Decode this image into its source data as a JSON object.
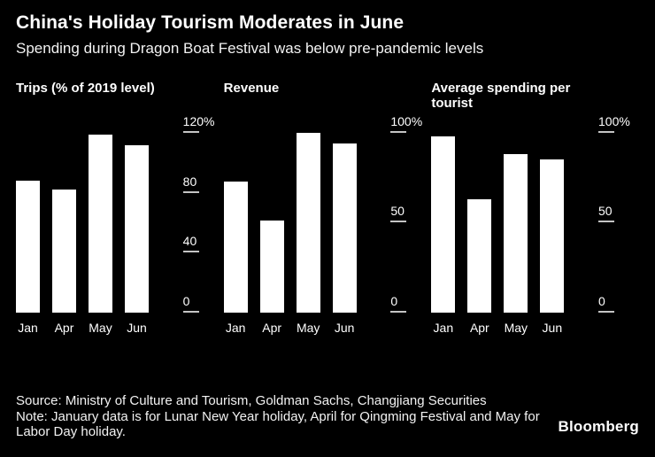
{
  "header": {
    "title": "China's Holiday Tourism Moderates in June",
    "subtitle": "Spending during Dragon Boat Festival was below pre-pandemic levels"
  },
  "chart_data": [
    {
      "type": "bar",
      "title": "Trips (% of 2019 level)",
      "categories": [
        "Jan",
        "Apr",
        "May",
        "Jun"
      ],
      "values": [
        88,
        82,
        119,
        112
      ],
      "ylim": [
        0,
        120
      ],
      "yticks": [
        {
          "value": 0,
          "label": "0"
        },
        {
          "value": 40,
          "label": "40"
        },
        {
          "value": 80,
          "label": "80"
        },
        {
          "value": 120,
          "label": "120%"
        }
      ],
      "legend": "none",
      "grid": false
    },
    {
      "type": "bar",
      "title": "Revenue",
      "categories": [
        "Jan",
        "Apr",
        "May",
        "Jun"
      ],
      "values": [
        73,
        51,
        100,
        94
      ],
      "ylim": [
        0,
        100
      ],
      "yticks": [
        {
          "value": 0,
          "label": "0"
        },
        {
          "value": 50,
          "label": "50"
        },
        {
          "value": 100,
          "label": "100%"
        }
      ],
      "legend": "none",
      "grid": false
    },
    {
      "type": "bar",
      "title": "Average spending per tourist",
      "categories": [
        "Jan",
        "Apr",
        "May",
        "Jun"
      ],
      "values": [
        98,
        63,
        88,
        85
      ],
      "ylim": [
        0,
        100
      ],
      "yticks": [
        {
          "value": 0,
          "label": "0"
        },
        {
          "value": 50,
          "label": "50"
        },
        {
          "value": 100,
          "label": "100%"
        }
      ],
      "legend": "none",
      "grid": false
    }
  ],
  "footer": {
    "source": "Source: Ministry of Culture and Tourism, Goldman Sachs, Changjiang Securities",
    "note": "Note: January data is for Lunar New Year holiday, April for Qingming Festival and May for Labor Day holiday.",
    "brand": "Bloomberg"
  },
  "colors": {
    "background": "#000000",
    "text": "#ffffff",
    "bar": "#ffffff",
    "tick_line": "#c4c4c4"
  }
}
